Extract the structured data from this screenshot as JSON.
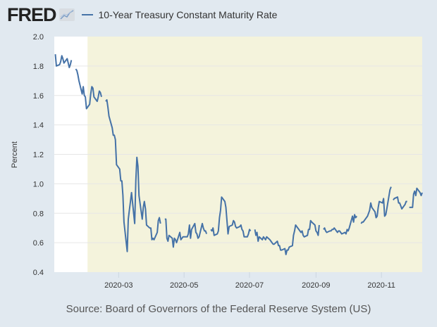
{
  "header": {
    "logo": "FRED",
    "legend": "10-Year Treasury Constant Maturity Rate"
  },
  "source": "Source: Board of Governors of the Federal Reserve System (US)",
  "chart_data": {
    "type": "line",
    "ylabel": "Percent",
    "ylim": [
      0.4,
      2.0
    ],
    "yticks": [
      "0.4",
      "0.6",
      "0.8",
      "1.0",
      "1.2",
      "1.4",
      "1.6",
      "1.8",
      "2.0"
    ],
    "xlim": [
      "2020-01-01",
      "2020-12-09"
    ],
    "xticks": [
      "2020-03",
      "2020-05",
      "2020-07",
      "2020-09",
      "2020-11"
    ],
    "grid": "horizontal",
    "recession_shading": {
      "start": "2020-02-01",
      "end": "2020-12-09"
    },
    "colors": {
      "line": "#4572a7",
      "shading": "#f4f3dc",
      "background": "#e1e9f0"
    },
    "series": [
      {
        "name": "10-Year Treasury Constant Maturity Rate",
        "points": [
          [
            "2020-01-02",
            1.88
          ],
          [
            "2020-01-03",
            1.8
          ],
          [
            "2020-01-06",
            1.81
          ],
          [
            "2020-01-07",
            1.83
          ],
          [
            "2020-01-08",
            1.87
          ],
          [
            "2020-01-09",
            1.85
          ],
          [
            "2020-01-10",
            1.82
          ],
          [
            "2020-01-13",
            1.85
          ],
          [
            "2020-01-14",
            1.82
          ],
          [
            "2020-01-15",
            1.79
          ],
          [
            "2020-01-16",
            1.81
          ],
          [
            "2020-01-17",
            1.84
          ],
          [
            "2020-01-20",
            null
          ],
          [
            "2020-01-21",
            1.78
          ],
          [
            "2020-01-22",
            1.77
          ],
          [
            "2020-01-23",
            1.74
          ],
          [
            "2020-01-24",
            1.7
          ],
          [
            "2020-01-27",
            1.61
          ],
          [
            "2020-01-28",
            1.66
          ],
          [
            "2020-01-29",
            1.6
          ],
          [
            "2020-01-30",
            1.59
          ],
          [
            "2020-01-31",
            1.51
          ],
          [
            "2020-02-03",
            1.54
          ],
          [
            "2020-02-04",
            1.61
          ],
          [
            "2020-02-05",
            1.66
          ],
          [
            "2020-02-06",
            1.65
          ],
          [
            "2020-02-07",
            1.59
          ],
          [
            "2020-02-10",
            1.56
          ],
          [
            "2020-02-11",
            1.59
          ],
          [
            "2020-02-12",
            1.63
          ],
          [
            "2020-02-13",
            1.62
          ],
          [
            "2020-02-14",
            1.59
          ],
          [
            "2020-02-17",
            null
          ],
          [
            "2020-02-18",
            1.56
          ],
          [
            "2020-02-19",
            1.57
          ],
          [
            "2020-02-20",
            1.52
          ],
          [
            "2020-02-21",
            1.46
          ],
          [
            "2020-02-24",
            1.38
          ],
          [
            "2020-02-25",
            1.33
          ],
          [
            "2020-02-26",
            1.33
          ],
          [
            "2020-02-27",
            1.3
          ],
          [
            "2020-02-28",
            1.13
          ],
          [
            "2020-03-02",
            1.1
          ],
          [
            "2020-03-03",
            1.02
          ],
          [
            "2020-03-04",
            1.02
          ],
          [
            "2020-03-05",
            0.92
          ],
          [
            "2020-03-06",
            0.74
          ],
          [
            "2020-03-09",
            0.54
          ],
          [
            "2020-03-10",
            0.76
          ],
          [
            "2020-03-11",
            0.82
          ],
          [
            "2020-03-12",
            0.88
          ],
          [
            "2020-03-13",
            0.94
          ],
          [
            "2020-03-16",
            0.73
          ],
          [
            "2020-03-17",
            1.02
          ],
          [
            "2020-03-18",
            1.18
          ],
          [
            "2020-03-19",
            1.12
          ],
          [
            "2020-03-20",
            0.92
          ],
          [
            "2020-03-23",
            0.76
          ],
          [
            "2020-03-24",
            0.84
          ],
          [
            "2020-03-25",
            0.88
          ],
          [
            "2020-03-26",
            0.83
          ],
          [
            "2020-03-27",
            0.72
          ],
          [
            "2020-03-30",
            0.7
          ],
          [
            "2020-03-31",
            0.7
          ],
          [
            "2020-04-01",
            0.62
          ],
          [
            "2020-04-02",
            0.63
          ],
          [
            "2020-04-03",
            0.62
          ],
          [
            "2020-04-06",
            0.67
          ],
          [
            "2020-04-07",
            0.75
          ],
          [
            "2020-04-08",
            0.77
          ],
          [
            "2020-04-09",
            0.73
          ],
          [
            "2020-04-10",
            null
          ],
          [
            "2020-04-13",
            0.76
          ],
          [
            "2020-04-14",
            0.76
          ],
          [
            "2020-04-15",
            0.63
          ],
          [
            "2020-04-16",
            0.61
          ],
          [
            "2020-04-17",
            0.65
          ],
          [
            "2020-04-20",
            0.63
          ],
          [
            "2020-04-21",
            0.57
          ],
          [
            "2020-04-22",
            0.63
          ],
          [
            "2020-04-23",
            0.62
          ],
          [
            "2020-04-24",
            0.6
          ],
          [
            "2020-04-27",
            0.67
          ],
          [
            "2020-04-28",
            0.62
          ],
          [
            "2020-04-29",
            0.63
          ],
          [
            "2020-04-30",
            0.64
          ],
          [
            "2020-05-01",
            0.64
          ],
          [
            "2020-05-04",
            0.64
          ],
          [
            "2020-05-05",
            0.66
          ],
          [
            "2020-05-06",
            0.72
          ],
          [
            "2020-05-07",
            0.63
          ],
          [
            "2020-05-08",
            0.69
          ],
          [
            "2020-05-11",
            0.73
          ],
          [
            "2020-05-12",
            0.67
          ],
          [
            "2020-05-13",
            0.66
          ],
          [
            "2020-05-14",
            0.63
          ],
          [
            "2020-05-15",
            0.64
          ],
          [
            "2020-05-18",
            0.73
          ],
          [
            "2020-05-19",
            0.7
          ],
          [
            "2020-05-20",
            0.68
          ],
          [
            "2020-05-21",
            0.68
          ],
          [
            "2020-05-22",
            0.66
          ],
          [
            "2020-05-25",
            null
          ],
          [
            "2020-05-26",
            0.69
          ],
          [
            "2020-05-27",
            0.68
          ],
          [
            "2020-05-28",
            0.7
          ],
          [
            "2020-05-29",
            0.65
          ],
          [
            "2020-06-01",
            0.66
          ],
          [
            "2020-06-02",
            0.68
          ],
          [
            "2020-06-03",
            0.77
          ],
          [
            "2020-06-04",
            0.82
          ],
          [
            "2020-06-05",
            0.91
          ],
          [
            "2020-06-08",
            0.88
          ],
          [
            "2020-06-09",
            0.84
          ],
          [
            "2020-06-10",
            0.75
          ],
          [
            "2020-06-11",
            0.66
          ],
          [
            "2020-06-12",
            0.71
          ],
          [
            "2020-06-15",
            0.72
          ],
          [
            "2020-06-16",
            0.75
          ],
          [
            "2020-06-17",
            0.74
          ],
          [
            "2020-06-18",
            0.71
          ],
          [
            "2020-06-19",
            0.7
          ],
          [
            "2020-06-22",
            0.71
          ],
          [
            "2020-06-23",
            0.72
          ],
          [
            "2020-06-24",
            0.69
          ],
          [
            "2020-06-25",
            0.68
          ],
          [
            "2020-06-26",
            0.64
          ],
          [
            "2020-06-29",
            0.64
          ],
          [
            "2020-06-30",
            0.66
          ],
          [
            "2020-07-01",
            0.69
          ],
          [
            "2020-07-02",
            0.68
          ],
          [
            "2020-07-03",
            null
          ],
          [
            "2020-07-06",
            0.69
          ],
          [
            "2020-07-07",
            0.65
          ],
          [
            "2020-07-08",
            0.67
          ],
          [
            "2020-07-09",
            0.61
          ],
          [
            "2020-07-10",
            0.64
          ],
          [
            "2020-07-13",
            0.62
          ],
          [
            "2020-07-14",
            0.64
          ],
          [
            "2020-07-15",
            0.63
          ],
          [
            "2020-07-16",
            0.62
          ],
          [
            "2020-07-17",
            0.64
          ],
          [
            "2020-07-20",
            0.62
          ],
          [
            "2020-07-21",
            0.61
          ],
          [
            "2020-07-22",
            0.6
          ],
          [
            "2020-07-23",
            0.59
          ],
          [
            "2020-07-24",
            0.59
          ],
          [
            "2020-07-27",
            0.61
          ],
          [
            "2020-07-28",
            0.58
          ],
          [
            "2020-07-29",
            0.58
          ],
          [
            "2020-07-30",
            0.55
          ],
          [
            "2020-07-31",
            0.55
          ],
          [
            "2020-08-03",
            0.56
          ],
          [
            "2020-08-04",
            0.52
          ],
          [
            "2020-08-05",
            0.55
          ],
          [
            "2020-08-06",
            0.55
          ],
          [
            "2020-08-07",
            0.57
          ],
          [
            "2020-08-10",
            0.58
          ],
          [
            "2020-08-11",
            0.65
          ],
          [
            "2020-08-12",
            0.68
          ],
          [
            "2020-08-13",
            0.72
          ],
          [
            "2020-08-14",
            0.71
          ],
          [
            "2020-08-17",
            0.68
          ],
          [
            "2020-08-18",
            0.67
          ],
          [
            "2020-08-19",
            0.68
          ],
          [
            "2020-08-20",
            0.65
          ],
          [
            "2020-08-21",
            0.64
          ],
          [
            "2020-08-24",
            0.65
          ],
          [
            "2020-08-25",
            0.69
          ],
          [
            "2020-08-26",
            0.69
          ],
          [
            "2020-08-27",
            0.75
          ],
          [
            "2020-08-28",
            0.74
          ],
          [
            "2020-08-31",
            0.72
          ],
          [
            "2020-09-01",
            0.68
          ],
          [
            "2020-09-02",
            0.67
          ],
          [
            "2020-09-03",
            0.65
          ],
          [
            "2020-09-04",
            0.72
          ],
          [
            "2020-09-07",
            null
          ],
          [
            "2020-09-08",
            0.69
          ],
          [
            "2020-09-09",
            0.7
          ],
          [
            "2020-09-10",
            0.68
          ],
          [
            "2020-09-11",
            0.67
          ],
          [
            "2020-09-14",
            0.68
          ],
          [
            "2020-09-15",
            0.68
          ],
          [
            "2020-09-16",
            0.69
          ],
          [
            "2020-09-17",
            0.69
          ],
          [
            "2020-09-18",
            0.7
          ],
          [
            "2020-09-21",
            0.67
          ],
          [
            "2020-09-22",
            0.68
          ],
          [
            "2020-09-23",
            0.68
          ],
          [
            "2020-09-24",
            0.67
          ],
          [
            "2020-09-25",
            0.66
          ],
          [
            "2020-09-28",
            0.67
          ],
          [
            "2020-09-29",
            0.66
          ],
          [
            "2020-09-30",
            0.69
          ],
          [
            "2020-10-01",
            0.68
          ],
          [
            "2020-10-02",
            0.7
          ],
          [
            "2020-10-05",
            0.78
          ],
          [
            "2020-10-06",
            0.74
          ],
          [
            "2020-10-07",
            0.79
          ],
          [
            "2020-10-08",
            0.77
          ],
          [
            "2020-10-09",
            0.78
          ],
          [
            "2020-10-12",
            null
          ],
          [
            "2020-10-13",
            0.73
          ],
          [
            "2020-10-14",
            0.74
          ],
          [
            "2020-10-15",
            0.74
          ],
          [
            "2020-10-16",
            0.75
          ],
          [
            "2020-10-19",
            0.78
          ],
          [
            "2020-10-20",
            0.8
          ],
          [
            "2020-10-21",
            0.82
          ],
          [
            "2020-10-22",
            0.87
          ],
          [
            "2020-10-23",
            0.84
          ],
          [
            "2020-10-26",
            0.81
          ],
          [
            "2020-10-27",
            0.77
          ],
          [
            "2020-10-28",
            0.78
          ],
          [
            "2020-10-29",
            0.84
          ],
          [
            "2020-10-30",
            0.88
          ],
          [
            "2020-11-02",
            0.87
          ],
          [
            "2020-11-03",
            0.9
          ],
          [
            "2020-11-04",
            0.78
          ],
          [
            "2020-11-05",
            0.79
          ],
          [
            "2020-11-06",
            0.83
          ],
          [
            "2020-11-09",
            0.96
          ],
          [
            "2020-11-10",
            0.98
          ],
          [
            "2020-11-11",
            null
          ],
          [
            "2020-11-12",
            0.89
          ],
          [
            "2020-11-13",
            0.9
          ],
          [
            "2020-11-16",
            0.91
          ],
          [
            "2020-11-17",
            0.87
          ],
          [
            "2020-11-18",
            0.87
          ],
          [
            "2020-11-19",
            0.85
          ],
          [
            "2020-11-20",
            0.83
          ],
          [
            "2020-11-23",
            0.86
          ],
          [
            "2020-11-24",
            0.88
          ],
          [
            "2020-11-25",
            0.88
          ],
          [
            "2020-11-26",
            null
          ],
          [
            "2020-11-27",
            0.84
          ],
          [
            "2020-11-30",
            0.84
          ],
          [
            "2020-12-01",
            0.93
          ],
          [
            "2020-12-02",
            0.95
          ],
          [
            "2020-12-03",
            0.92
          ],
          [
            "2020-12-04",
            0.97
          ],
          [
            "2020-12-07",
            0.94
          ],
          [
            "2020-12-08",
            0.92
          ],
          [
            "2020-12-09",
            0.94
          ]
        ]
      }
    ]
  }
}
